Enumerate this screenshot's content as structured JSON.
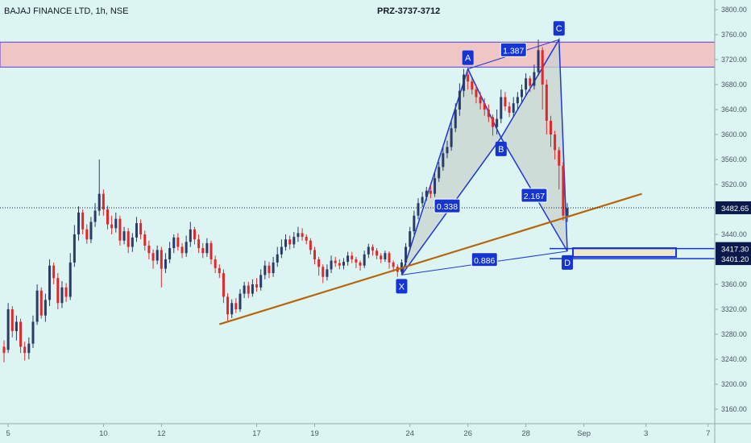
{
  "header": {
    "symbol": "BAJAJ FINANCE LTD, 1h, NSE",
    "prz_title": "PRZ-3737-3712"
  },
  "colors": {
    "background": "#dcf5f3",
    "up_candle": "#2a3b66",
    "down_candle": "#e0282c",
    "pattern_line": "#1e36d6",
    "pattern_fill": "#c9d3cf",
    "trendline": "#b8650a",
    "zone_fill": "#f0c5c6",
    "zone_border": "#5b3fd0",
    "label_bg": "#1435d4",
    "price_badge": "#0b1a4a"
  },
  "chart_data": {
    "type": "candlestick",
    "title": "PRZ-3737-3712",
    "symbol": "BAJAJ FINANCE LTD",
    "interval": "1h",
    "exchange": "NSE",
    "ylim": [
      3140,
      3810
    ],
    "y_ticks": [
      3160,
      3200,
      3240,
      3280,
      3320,
      3360,
      3400,
      3440,
      3480,
      3520,
      3560,
      3600,
      3640,
      3680,
      3720,
      3760,
      3800
    ],
    "x_ticks": [
      {
        "label": "5",
        "bar": 1
      },
      {
        "label": "10",
        "bar": 24
      },
      {
        "label": "12",
        "bar": 38
      },
      {
        "label": "17",
        "bar": 61
      },
      {
        "label": "19",
        "bar": 75
      },
      {
        "label": "24",
        "bar": 98
      },
      {
        "label": "26",
        "bar": 112
      },
      {
        "label": "28",
        "bar": 126
      },
      {
        "label": "Sep",
        "bar": 140
      },
      {
        "label": "3",
        "bar": 155
      },
      {
        "label": "7",
        "bar": 170
      }
    ],
    "current_price": "3482.65",
    "price_levels": [
      "3417.30",
      "3401.20"
    ],
    "resistance_zone": [
      3708,
      3748
    ],
    "harmonic_points": [
      {
        "label": "X",
        "bar": 96,
        "price": 3375
      },
      {
        "label": "A",
        "bar": 112,
        "price": 3705
      },
      {
        "label": "B",
        "bar": 120,
        "price": 3595
      },
      {
        "label": "C",
        "bar": 134,
        "price": 3752
      },
      {
        "label": "D",
        "bar": 136,
        "price": 3413
      }
    ],
    "ratios": [
      {
        "text": "0.338",
        "bar": 107,
        "price": 3485
      },
      {
        "text": "1.387",
        "bar": 123,
        "price": 3735
      },
      {
        "text": "2.167",
        "bar": 128,
        "price": 3502
      },
      {
        "text": "0.886",
        "bar": 116,
        "price": 3399
      }
    ],
    "trendline": [
      {
        "bar": 52,
        "price": 3296
      },
      {
        "bar": 154,
        "price": 3505
      }
    ],
    "candles": [
      [
        3260,
        3250,
        3270,
        3235
      ],
      [
        3255,
        3320,
        3330,
        3250
      ],
      [
        3320,
        3285,
        3325,
        3275
      ],
      [
        3285,
        3300,
        3310,
        3270
      ],
      [
        3300,
        3260,
        3305,
        3250
      ],
      [
        3260,
        3250,
        3268,
        3238
      ],
      [
        3250,
        3265,
        3275,
        3240
      ],
      [
        3265,
        3300,
        3310,
        3258
      ],
      [
        3300,
        3350,
        3360,
        3295
      ],
      [
        3350,
        3310,
        3355,
        3305
      ],
      [
        3310,
        3335,
        3345,
        3300
      ],
      [
        3335,
        3390,
        3400,
        3325
      ],
      [
        3390,
        3370,
        3395,
        3360
      ],
      [
        3370,
        3330,
        3378,
        3320
      ],
      [
        3330,
        3355,
        3365,
        3322
      ],
      [
        3355,
        3340,
        3362,
        3332
      ],
      [
        3340,
        3395,
        3410,
        3335
      ],
      [
        3395,
        3440,
        3455,
        3388
      ],
      [
        3440,
        3475,
        3485,
        3430
      ],
      [
        3475,
        3448,
        3480,
        3440
      ],
      [
        3448,
        3432,
        3456,
        3425
      ],
      [
        3432,
        3460,
        3468,
        3426
      ],
      [
        3460,
        3478,
        3490,
        3452
      ],
      [
        3478,
        3505,
        3560,
        3470
      ],
      [
        3505,
        3480,
        3512,
        3470
      ],
      [
        3480,
        3456,
        3486,
        3448
      ],
      [
        3456,
        3450,
        3470,
        3440
      ],
      [
        3450,
        3465,
        3475,
        3443
      ],
      [
        3465,
        3430,
        3470,
        3422
      ],
      [
        3430,
        3445,
        3452,
        3424
      ],
      [
        3445,
        3420,
        3450,
        3410
      ],
      [
        3420,
        3435,
        3442,
        3412
      ],
      [
        3435,
        3458,
        3468,
        3428
      ],
      [
        3458,
        3440,
        3464,
        3432
      ],
      [
        3440,
        3422,
        3446,
        3414
      ],
      [
        3422,
        3410,
        3430,
        3400
      ],
      [
        3410,
        3398,
        3416,
        3385
      ],
      [
        3398,
        3415,
        3422,
        3392
      ],
      [
        3415,
        3385,
        3420,
        3355
      ],
      [
        3385,
        3400,
        3410,
        3378
      ],
      [
        3400,
        3418,
        3428,
        3394
      ],
      [
        3418,
        3435,
        3440,
        3410
      ],
      [
        3435,
        3420,
        3442,
        3414
      ],
      [
        3420,
        3410,
        3426,
        3402
      ],
      [
        3410,
        3428,
        3438,
        3404
      ],
      [
        3428,
        3448,
        3460,
        3420
      ],
      [
        3448,
        3432,
        3452,
        3424
      ],
      [
        3432,
        3418,
        3440,
        3410
      ],
      [
        3418,
        3410,
        3426,
        3402
      ],
      [
        3410,
        3426,
        3434,
        3404
      ],
      [
        3426,
        3400,
        3430,
        3392
      ],
      [
        3400,
        3386,
        3406,
        3378
      ],
      [
        3386,
        3378,
        3392,
        3370
      ],
      [
        3378,
        3340,
        3384,
        3330
      ],
      [
        3340,
        3312,
        3346,
        3302
      ],
      [
        3312,
        3330,
        3336,
        3306
      ],
      [
        3330,
        3320,
        3338,
        3314
      ],
      [
        3320,
        3345,
        3352,
        3316
      ],
      [
        3345,
        3358,
        3364,
        3338
      ],
      [
        3358,
        3345,
        3364,
        3338
      ],
      [
        3345,
        3360,
        3368,
        3340
      ],
      [
        3360,
        3355,
        3370,
        3348
      ],
      [
        3355,
        3375,
        3384,
        3350
      ],
      [
        3375,
        3390,
        3398,
        3368
      ],
      [
        3390,
        3378,
        3396,
        3370
      ],
      [
        3378,
        3395,
        3404,
        3372
      ],
      [
        3395,
        3408,
        3420,
        3388
      ],
      [
        3408,
        3420,
        3432,
        3402
      ],
      [
        3420,
        3432,
        3440,
        3414
      ],
      [
        3432,
        3424,
        3438,
        3416
      ],
      [
        3424,
        3436,
        3444,
        3418
      ],
      [
        3436,
        3442,
        3452,
        3428
      ],
      [
        3442,
        3436,
        3450,
        3430
      ],
      [
        3436,
        3430,
        3440,
        3424
      ],
      [
        3430,
        3415,
        3434,
        3408
      ],
      [
        3415,
        3400,
        3420,
        3392
      ],
      [
        3400,
        3388,
        3404,
        3374
      ],
      [
        3388,
        3372,
        3392,
        3362
      ],
      [
        3372,
        3384,
        3392,
        3366
      ],
      [
        3384,
        3398,
        3406,
        3378
      ],
      [
        3398,
        3394,
        3404,
        3388
      ],
      [
        3394,
        3390,
        3400,
        3384
      ],
      [
        3390,
        3396,
        3402,
        3384
      ],
      [
        3396,
        3406,
        3412,
        3390
      ],
      [
        3406,
        3400,
        3412,
        3394
      ],
      [
        3400,
        3395,
        3404,
        3386
      ],
      [
        3395,
        3390,
        3398,
        3382
      ],
      [
        3390,
        3408,
        3414,
        3386
      ],
      [
        3408,
        3420,
        3425,
        3402
      ],
      [
        3420,
        3414,
        3424,
        3406
      ],
      [
        3414,
        3406,
        3418,
        3400
      ],
      [
        3406,
        3400,
        3410,
        3394
      ],
      [
        3400,
        3410,
        3414,
        3396
      ],
      [
        3410,
        3395,
        3413,
        3385
      ],
      [
        3395,
        3388,
        3398,
        3380
      ],
      [
        3388,
        3380,
        3392,
        3372
      ],
      [
        3380,
        3395,
        3400,
        3376
      ],
      [
        3395,
        3420,
        3426,
        3390
      ],
      [
        3420,
        3445,
        3452,
        3414
      ],
      [
        3445,
        3470,
        3478,
        3440
      ],
      [
        3470,
        3490,
        3498,
        3464
      ],
      [
        3490,
        3500,
        3508,
        3484
      ],
      [
        3500,
        3510,
        3516,
        3494
      ],
      [
        3510,
        3505,
        3518,
        3498
      ],
      [
        3505,
        3530,
        3540,
        3500
      ],
      [
        3530,
        3548,
        3556,
        3524
      ],
      [
        3548,
        3570,
        3580,
        3542
      ],
      [
        3570,
        3580,
        3590,
        3562
      ],
      [
        3580,
        3610,
        3622,
        3574
      ],
      [
        3610,
        3640,
        3650,
        3604
      ],
      [
        3640,
        3670,
        3682,
        3630
      ],
      [
        3670,
        3696,
        3705,
        3660
      ],
      [
        3696,
        3685,
        3700,
        3672
      ],
      [
        3685,
        3672,
        3690,
        3664
      ],
      [
        3672,
        3660,
        3680,
        3650
      ],
      [
        3660,
        3650,
        3668,
        3640
      ],
      [
        3650,
        3640,
        3658,
        3630
      ],
      [
        3640,
        3628,
        3648,
        3620
      ],
      [
        3628,
        3612,
        3632,
        3598
      ],
      [
        3612,
        3625,
        3640,
        3600
      ],
      [
        3625,
        3660,
        3672,
        3618
      ],
      [
        3660,
        3645,
        3668,
        3638
      ],
      [
        3645,
        3635,
        3652,
        3628
      ],
      [
        3635,
        3650,
        3660,
        3628
      ],
      [
        3650,
        3660,
        3668,
        3640
      ],
      [
        3660,
        3672,
        3680,
        3650
      ],
      [
        3672,
        3690,
        3698,
        3662
      ],
      [
        3690,
        3678,
        3694,
        3668
      ],
      [
        3678,
        3700,
        3712,
        3672
      ],
      [
        3700,
        3735,
        3752,
        3694
      ],
      [
        3735,
        3680,
        3740,
        3640
      ],
      [
        3680,
        3622,
        3688,
        3600
      ],
      [
        3622,
        3600,
        3630,
        3580
      ],
      [
        3600,
        3575,
        3606,
        3560
      ],
      [
        3575,
        3550,
        3580,
        3512
      ],
      [
        3550,
        3470,
        3556,
        3462
      ],
      [
        3470,
        3482,
        3490,
        3460
      ]
    ]
  }
}
